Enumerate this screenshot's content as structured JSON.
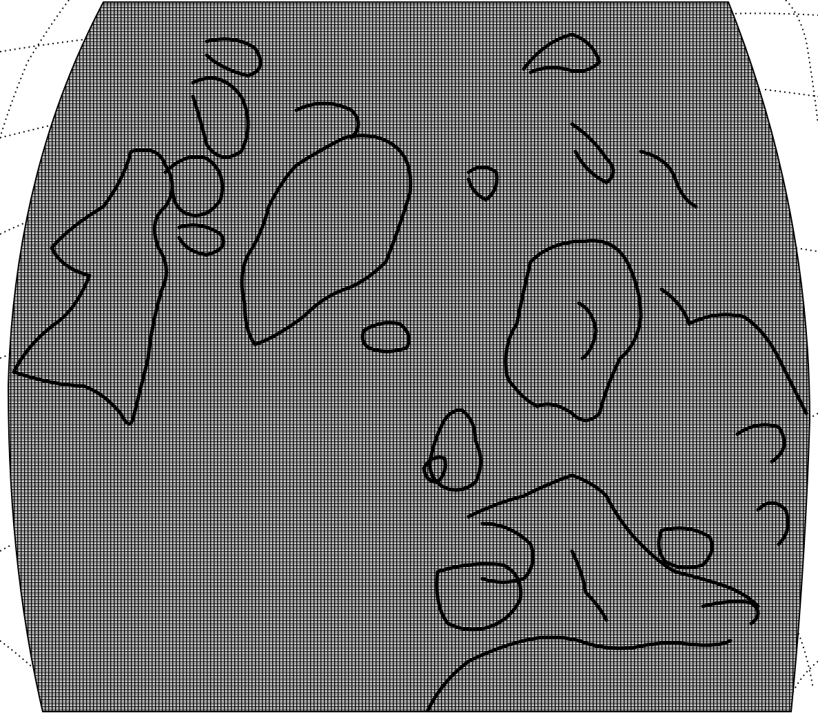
{
  "map": {
    "projection": "conic",
    "mesh_color": "#000000",
    "coast_color": "#000000",
    "graticule_color": "#000000",
    "background_color": "#ffffff",
    "graticule_style": "dotted",
    "mesh_style": "dense-grid"
  }
}
